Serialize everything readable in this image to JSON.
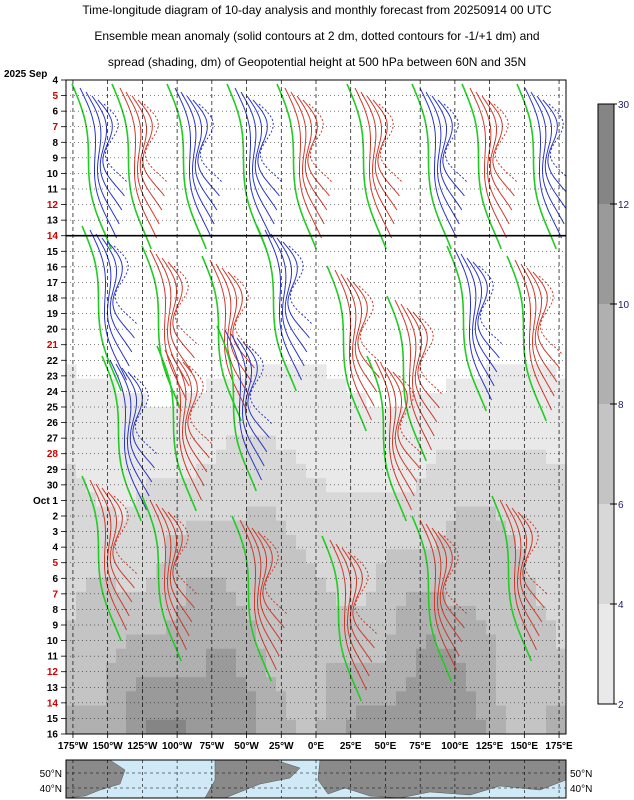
{
  "title": {
    "line1": "Time-longitude diagram of 10-day analysis and monthly forecast from 20250914 00 UTC",
    "line2": "Ensemble mean anomaly (solid contours at 2 dm, dotted contours for -1/+1 dm) and",
    "line3": "spread (shading, dm) of Geopotential height at 500 hPa between 60N and 35N"
  },
  "colors": {
    "positive_contour": "#d03a2a",
    "negative_contour": "#2a36c8",
    "zero_contour": "#22cc22",
    "weekend_label": "#cc0000",
    "colorbar_label": "#1a1a66",
    "map_ocean": "#cfe9f7",
    "map_land": "#8a8a8a"
  },
  "chart_data": {
    "type": "heatmap",
    "x_axis": {
      "range": [
        "175°W",
        "175°E"
      ],
      "tick_labels": [
        "175°W",
        "150°W",
        "125°W",
        "100°W",
        "75°W",
        "50°W",
        "25°W",
        "0°E",
        "25°E",
        "50°E",
        "75°E",
        "100°E",
        "125°E",
        "150°E",
        "175°E"
      ],
      "tick_values": [
        -175,
        -150,
        -125,
        -100,
        -75,
        -50,
        -25,
        0,
        25,
        50,
        75,
        100,
        125,
        150,
        175
      ],
      "grid": true
    },
    "y_axis": {
      "start_label": "2025 Sep",
      "tick_labels": [
        "4",
        "5",
        "6",
        "7",
        "8",
        "9",
        "10",
        "11",
        "12",
        "13",
        "14",
        "15",
        "16",
        "17",
        "18",
        "19",
        "20",
        "21",
        "22",
        "23",
        "24",
        "25",
        "26",
        "27",
        "28",
        "29",
        "30",
        "Oct 1",
        "2",
        "3",
        "4",
        "5",
        "6",
        "7",
        "8",
        "9",
        "10",
        "11",
        "12",
        "13",
        "14",
        "15",
        "16"
      ],
      "weekend_labels": [
        "7",
        "14",
        "21",
        "28",
        "5",
        "12"
      ],
      "analysis_forecast_boundary": "14"
    },
    "colorbar": {
      "levels": [
        2,
        4,
        6,
        8,
        10,
        12,
        30
      ],
      "labels": [
        "2",
        "4",
        "6",
        "8",
        "10",
        "12",
        "30"
      ],
      "shades": [
        "#e9e9e9",
        "#d8d8d8",
        "#c4c4c4",
        "#b0b0b0",
        "#9a9a9a",
        "#858585"
      ]
    },
    "map_labels": {
      "left": [
        "50°N",
        "40°N"
      ],
      "right": [
        "50°N",
        "40°N"
      ]
    }
  }
}
